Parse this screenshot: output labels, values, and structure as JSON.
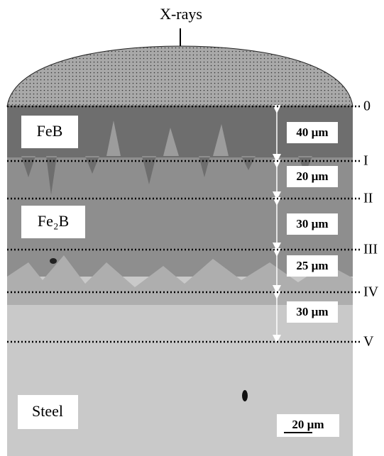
{
  "source_label": "X-rays",
  "regions": [
    {
      "label": "FeB"
    },
    {
      "label": "Fe₂B"
    },
    {
      "label": "Steel"
    }
  ],
  "depth_marks": [
    "0",
    "I",
    "II",
    "III",
    "IV",
    "V"
  ],
  "thicknesses": [
    "40 µm",
    "20 µm",
    "30 µm",
    "25 µm",
    "30 µm"
  ],
  "scale_bar": "20 µm"
}
